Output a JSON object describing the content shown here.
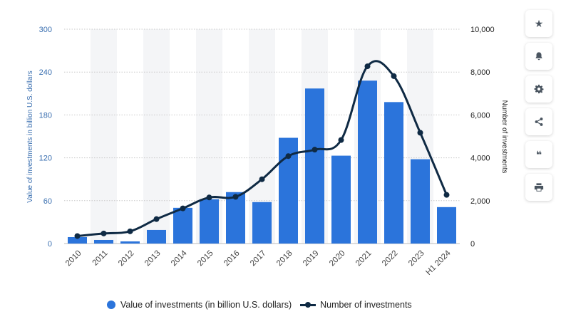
{
  "chart_data": {
    "type": "bar+line",
    "categories": [
      "2010",
      "2011",
      "2012",
      "2013",
      "2014",
      "2015",
      "2016",
      "2017",
      "2018",
      "2019",
      "2020",
      "2021",
      "2022",
      "2023",
      "H1 2024"
    ],
    "series": [
      {
        "name": "Value of investments (in billion U.S. dollars)",
        "type": "bar",
        "axis": "left",
        "color": "#2b74db",
        "values": [
          9,
          5,
          3,
          19,
          50,
          62,
          72,
          58,
          148,
          217,
          123,
          228,
          198,
          118,
          51
        ]
      },
      {
        "name": "Number of investments",
        "type": "line",
        "axis": "right",
        "color": "#0f2a44",
        "values": [
          350,
          470,
          570,
          1140,
          1640,
          2150,
          2180,
          3000,
          4080,
          4380,
          4830,
          8270,
          7810,
          5170,
          2270
        ]
      }
    ],
    "ylabel_left": "Value of investments in billion U.S. dollars",
    "ylabel_right": "Number of investments",
    "ylim_left": [
      0,
      300
    ],
    "ylim_right": [
      0,
      10000
    ],
    "yticks_left": [
      "0",
      "60",
      "120",
      "180",
      "240",
      "300"
    ],
    "yticks_right": [
      "0",
      "2,000",
      "4,000",
      "6,000",
      "8,000",
      "10,000"
    ],
    "grid": true,
    "legend_position": "bottom"
  },
  "legend": {
    "bar_label": "Value of investments (in billion U.S. dollars)",
    "line_label": "Number of investments"
  },
  "toolbar": [
    {
      "name": "star-icon",
      "glyph": "★"
    },
    {
      "name": "bell-icon",
      "glyph": ""
    },
    {
      "name": "gear-icon",
      "glyph": ""
    },
    {
      "name": "share-icon",
      "glyph": ""
    },
    {
      "name": "quote-icon",
      "glyph": "❝"
    },
    {
      "name": "print-icon",
      "glyph": ""
    }
  ]
}
